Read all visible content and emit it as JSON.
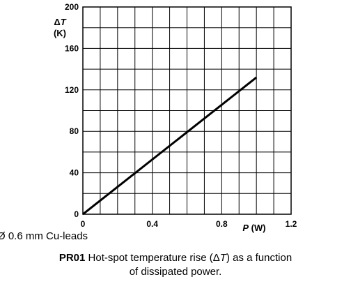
{
  "chart_data": {
    "type": "line",
    "y_title_symbol": "Δ",
    "y_title_var": "T",
    "y_title_unit": "(K)",
    "x_title_var": "P",
    "x_title_unit": "(W)",
    "xlim": [
      0,
      1.2
    ],
    "ylim": [
      0,
      200
    ],
    "x_ticks": [
      "0",
      "0.4",
      "0.8",
      "1.2"
    ],
    "y_ticks": [
      "0",
      "40",
      "80",
      "120",
      "160",
      "200"
    ],
    "grid": true,
    "series": [
      {
        "x": [
          0,
          1.0
        ],
        "y": [
          0,
          132
        ]
      }
    ]
  },
  "note": {
    "prefix": "Ø",
    "text": " 0.6 mm Cu-leads"
  },
  "caption": {
    "code": "PR01",
    "line1_a": " Hot-spot temperature rise (Δ",
    "line1_var": "T",
    "line1_b": ") as a function",
    "line2": "of dissipated power."
  }
}
